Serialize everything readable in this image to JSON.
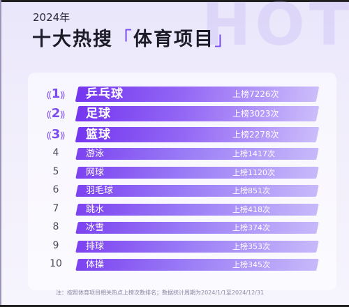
{
  "header": {
    "year": "2024年",
    "title_main": "十大热搜",
    "bracket_open": "「",
    "title_topic": "体育项目",
    "bracket_close": "」",
    "watermark": "HOT"
  },
  "ranking": [
    {
      "rank": "1",
      "name": "乒乓球",
      "count": "上榜7226次"
    },
    {
      "rank": "2",
      "name": "足球",
      "count": "上榜3023次"
    },
    {
      "rank": "3",
      "name": "篮球",
      "count": "上榜2278次"
    },
    {
      "rank": "4",
      "name": "游泳",
      "count": "上榜1417次"
    },
    {
      "rank": "5",
      "name": "网球",
      "count": "上榜1120次"
    },
    {
      "rank": "6",
      "name": "羽毛球",
      "count": "上榜851次"
    },
    {
      "rank": "7",
      "name": "跳水",
      "count": "上榜418次"
    },
    {
      "rank": "8",
      "name": "冰雪",
      "count": "上榜374次"
    },
    {
      "rank": "9",
      "name": "排球",
      "count": "上榜353次"
    },
    {
      "rank": "10",
      "name": "体操",
      "count": "上榜345次"
    }
  ],
  "wreath_left": "⸨",
  "wreath_right": "⸩",
  "note": "注：按照体育项目相关热点上榜次数排名；数据统计周期为2024/1/1至2024/12/31",
  "colors": {
    "accent": "#7a4cf0",
    "bar_start": "#7c42f0",
    "bar_end": "#c7b9fa",
    "background": "#eae6fb"
  }
}
